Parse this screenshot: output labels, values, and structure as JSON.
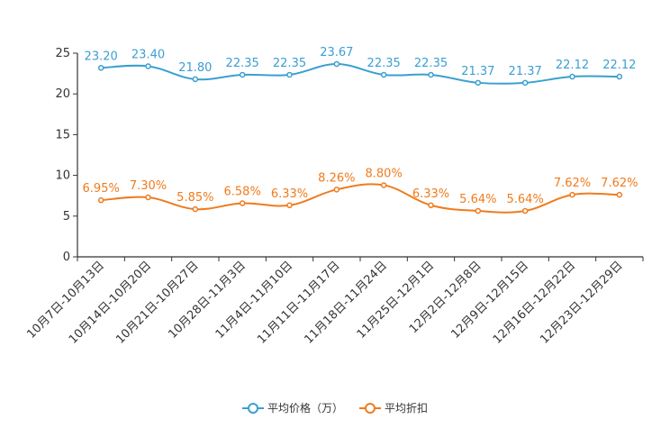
{
  "chart_data": {
    "type": "line",
    "categories": [
      "10月7日-10月13日",
      "10月14日-10月20日",
      "10月21日-10月27日",
      "10月28日-11月3日",
      "11月4日-11月10日",
      "11月11日-11月17日",
      "11月18日-11月24日",
      "11月25日-12月1日",
      "12月2日-12月8日",
      "12月9日-12月15日",
      "12月16日-12月22日",
      "12月23日-12月29日"
    ],
    "series": [
      {
        "name": "平均价格（万）",
        "color": "#3b9fd1",
        "values": [
          23.2,
          23.4,
          21.8,
          22.35,
          22.35,
          23.67,
          22.35,
          22.35,
          21.37,
          21.37,
          22.12,
          22.12
        ],
        "labels": [
          "23.20",
          "23.40",
          "21.80",
          "22.35",
          "22.35",
          "23.67",
          "22.35",
          "22.35",
          "21.37",
          "21.37",
          "22.12",
          "22.12"
        ]
      },
      {
        "name": "平均折扣",
        "color": "#f07b1d",
        "values": [
          6.95,
          7.3,
          5.85,
          6.58,
          6.33,
          8.26,
          8.8,
          6.33,
          5.64,
          5.64,
          7.62,
          7.62
        ],
        "labels": [
          "6.95%",
          "7.30%",
          "5.85%",
          "6.58%",
          "6.33%",
          "8.26%",
          "8.80%",
          "6.33%",
          "5.64%",
          "5.64%",
          "7.62%",
          "7.62%"
        ]
      }
    ],
    "ylim": [
      0,
      25
    ],
    "yticks": [
      "0",
      "5",
      "10",
      "15",
      "20",
      "25"
    ],
    "grid": false,
    "legend": "bottom-center"
  }
}
